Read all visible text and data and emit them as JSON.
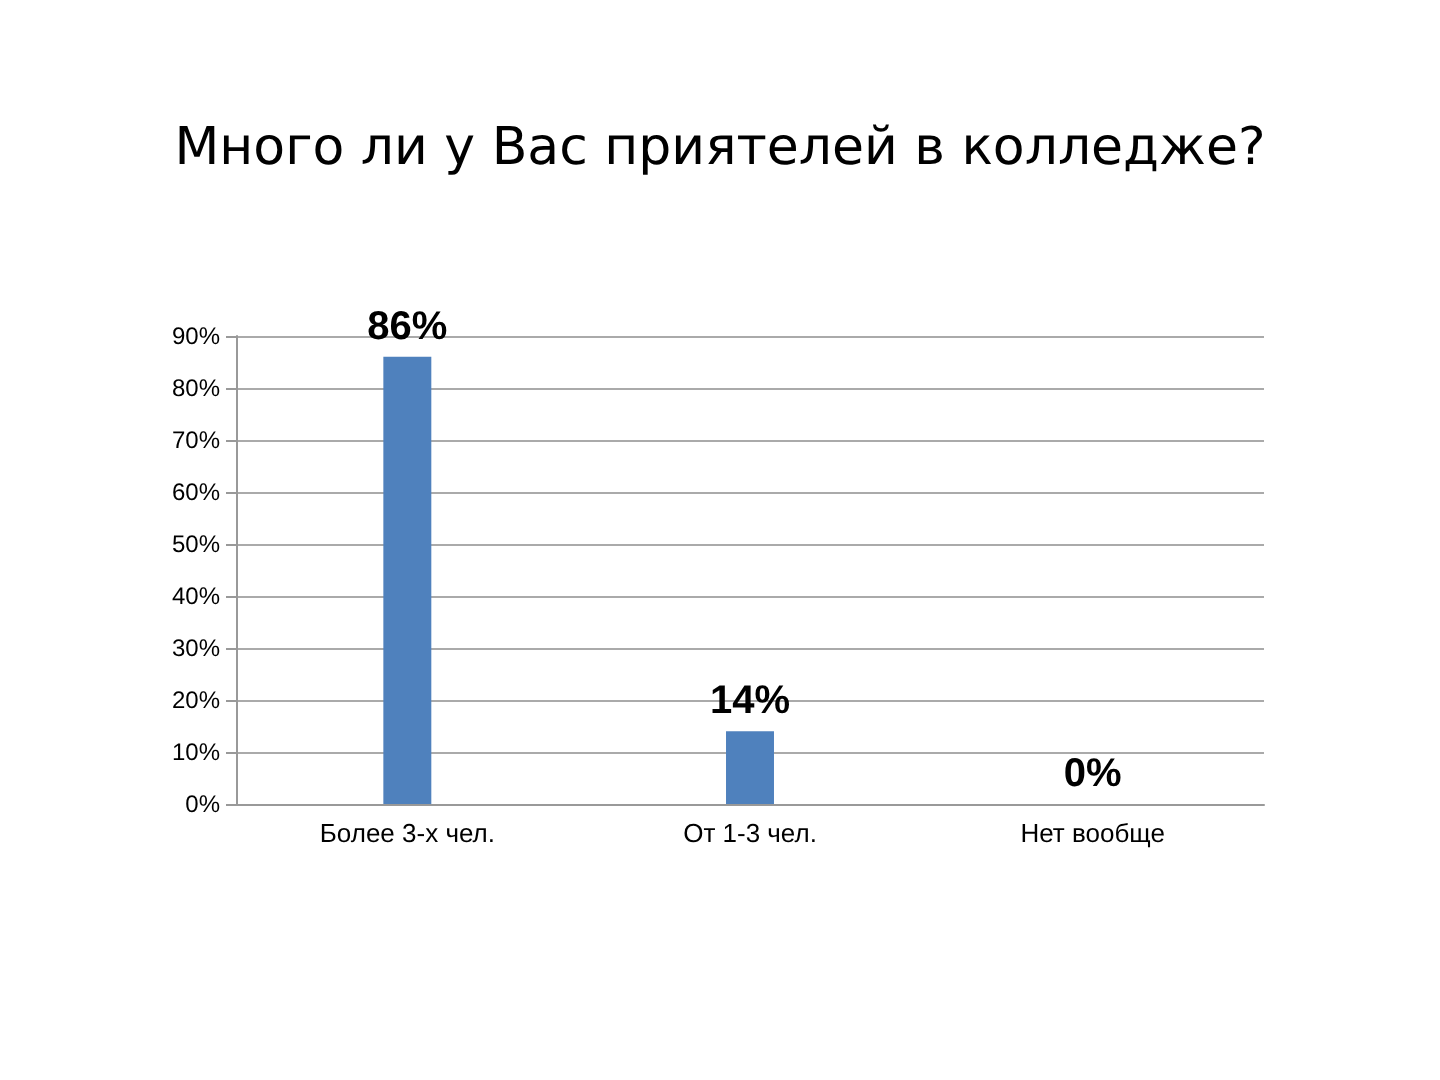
{
  "chart_data": {
    "type": "bar",
    "title": "Много ли у Вас приятелей в колледже?",
    "categories": [
      "Более 3-х чел.",
      "От 1-3 чел.",
      "Нет вообще"
    ],
    "values": [
      86,
      14,
      0
    ],
    "color": "#4f81bd",
    "value_labels": [
      "86%",
      "14%",
      "0%"
    ],
    "ylim": [
      0,
      90
    ],
    "yticks": [
      {
        "value": 0,
        "label": "0%"
      },
      {
        "value": 10,
        "label": "10%"
      },
      {
        "value": 20,
        "label": "20%"
      },
      {
        "value": 30,
        "label": "30%"
      },
      {
        "value": 40,
        "label": "40%"
      },
      {
        "value": 50,
        "label": "50%"
      },
      {
        "value": 60,
        "label": "60%"
      },
      {
        "value": 70,
        "label": "70%"
      },
      {
        "value": 80,
        "label": "80%"
      },
      {
        "value": 90,
        "label": "90%"
      }
    ],
    "grid": "y"
  }
}
